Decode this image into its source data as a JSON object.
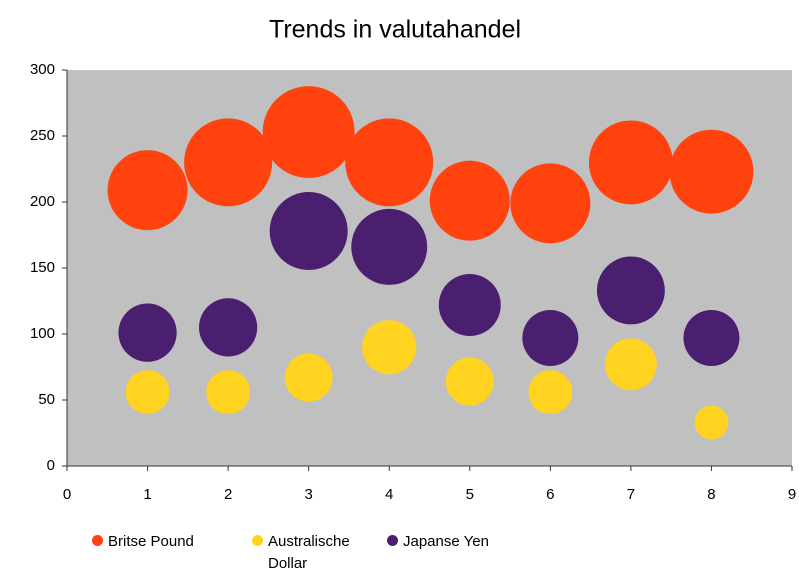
{
  "chart_data": {
    "type": "bubble",
    "title": "Trends in valutahandel",
    "x": [
      1,
      2,
      3,
      4,
      5,
      6,
      7,
      8
    ],
    "series": [
      {
        "name": "Britse Pound",
        "color": "#ff420e",
        "values": [
          209,
          230,
          253,
          230,
          201,
          199,
          230,
          223
        ],
        "sizes": [
          100,
          121,
          132,
          121,
          100,
          100,
          110,
          110
        ]
      },
      {
        "name": "Australische Dollar",
        "color": "#ffd320",
        "values": [
          56,
          56,
          67,
          90,
          64,
          56,
          77,
          33
        ],
        "sizes": [
          30,
          30,
          36,
          46,
          36,
          30,
          42,
          18
        ]
      },
      {
        "name": "Japanse Yen",
        "color": "#4b1f6f",
        "values": [
          101,
          105,
          178,
          166,
          122,
          97,
          133,
          97
        ],
        "sizes": [
          53,
          53,
          95,
          90,
          60,
          49,
          72,
          49
        ]
      }
    ],
    "xlim": [
      0,
      9
    ],
    "xticks": [
      0,
      1,
      2,
      3,
      4,
      5,
      6,
      7,
      8,
      9
    ],
    "ylim": [
      0,
      300
    ],
    "yticks": [
      0,
      50,
      100,
      150,
      200,
      250,
      300
    ],
    "grid": false,
    "legend": "bottom"
  }
}
